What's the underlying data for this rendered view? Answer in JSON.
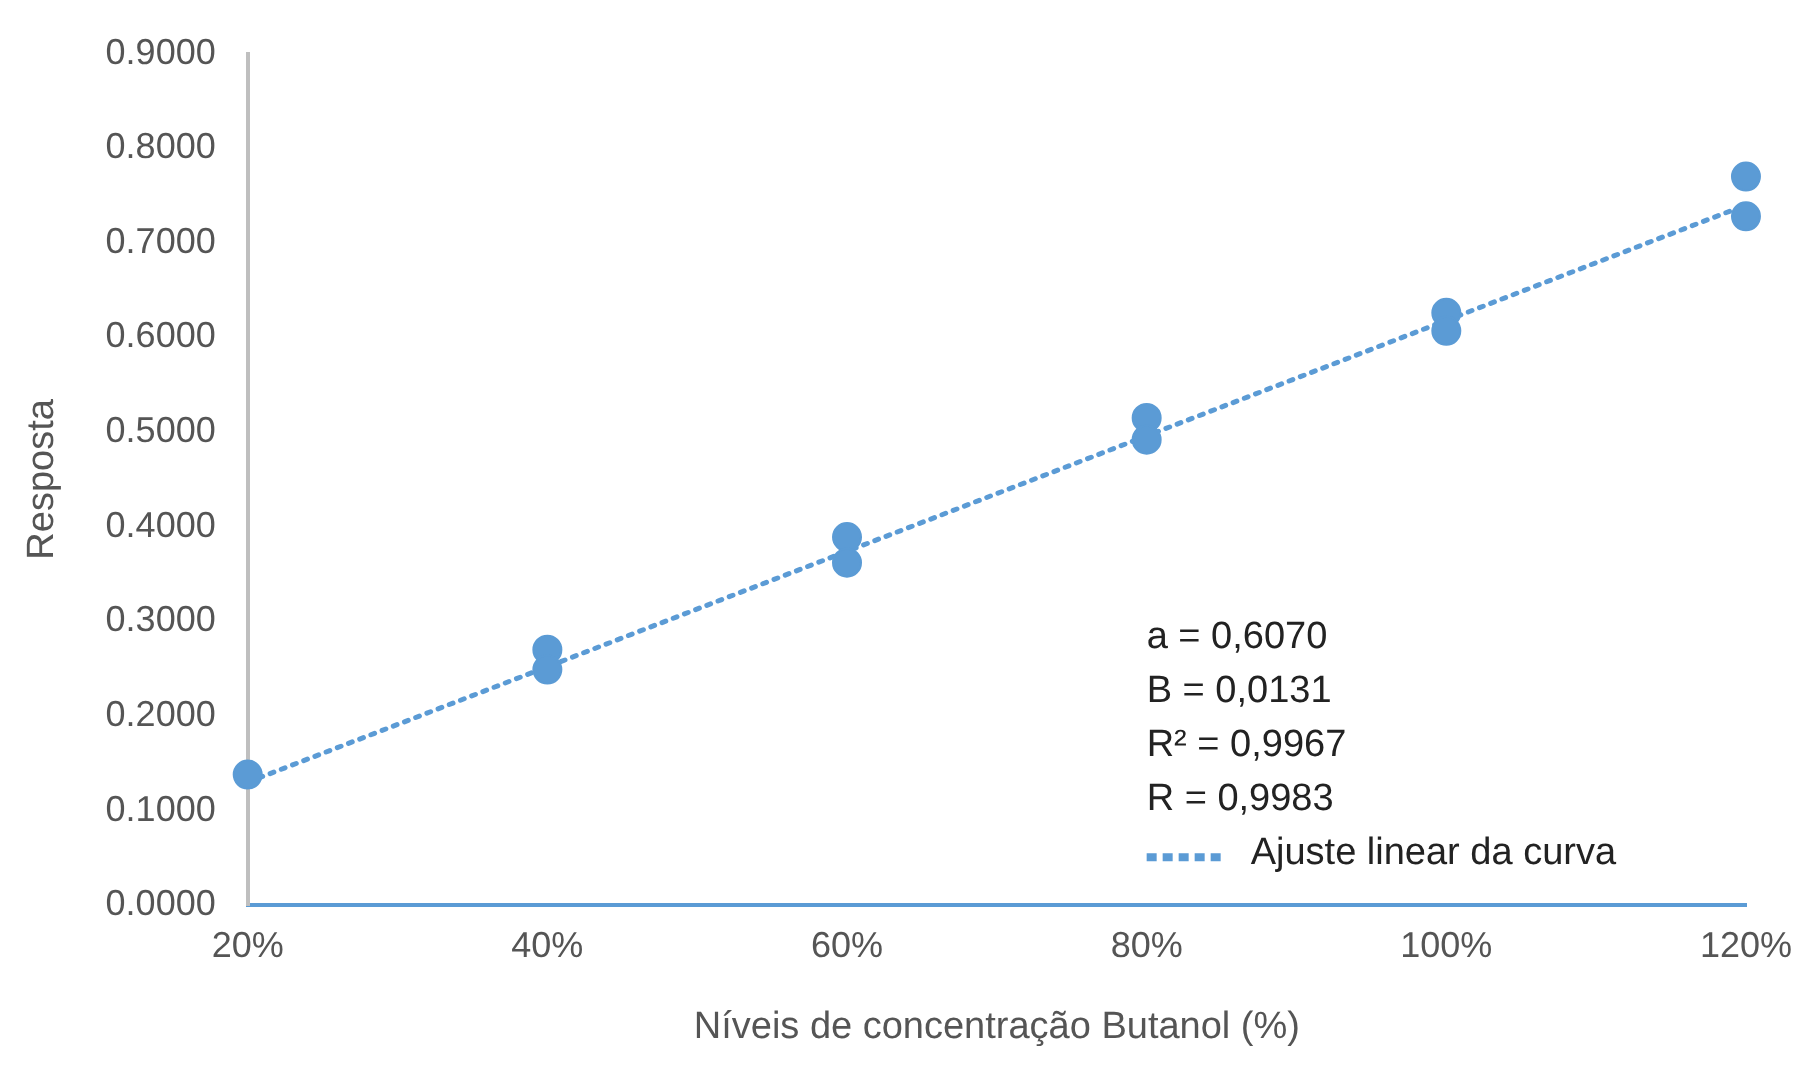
{
  "chart_data": {
    "type": "scatter",
    "xlabel": "Níveis de concentração Butanol (%)",
    "ylabel": "Resposta",
    "xlim": [
      0.2,
      1.2
    ],
    "xticks": [
      {
        "value": 0.2,
        "label": "20%"
      },
      {
        "value": 0.4,
        "label": "40%"
      },
      {
        "value": 0.6,
        "label": "60%"
      },
      {
        "value": 0.8,
        "label": "80%"
      },
      {
        "value": 1.0,
        "label": "100%"
      },
      {
        "value": 1.2,
        "label": "120%"
      }
    ],
    "ylim": [
      0,
      0.9
    ],
    "yticks": [
      {
        "value": 0,
        "label": "0.0000"
      },
      {
        "value": 0.1,
        "label": "0.1000"
      },
      {
        "value": 0.2,
        "label": "0.2000"
      },
      {
        "value": 0.3,
        "label": "0.3000"
      },
      {
        "value": 0.4,
        "label": "0.4000"
      },
      {
        "value": 0.5,
        "label": "0.5000"
      },
      {
        "value": 0.6,
        "label": "0.6000"
      },
      {
        "value": 0.7,
        "label": "0.7000"
      },
      {
        "value": 0.8,
        "label": "0.8000"
      },
      {
        "value": 0.9,
        "label": "0.9000"
      }
    ],
    "grid": false,
    "legend": "bottom right",
    "marker": "circle",
    "series": [
      {
        "color": "#5b9bd5",
        "x": [
          0.2,
          0.4,
          0.4,
          0.6,
          0.6,
          0.8,
          0.8,
          1.0,
          1.0,
          1.2,
          1.2
        ],
        "values": [
          0.138,
          0.27,
          0.249,
          0.389,
          0.362,
          0.515,
          0.492,
          0.626,
          0.607,
          0.77,
          0.728
        ]
      },
      {
        "type": "line",
        "name": "Ajuste linear da curva",
        "color": "#5b9bd5",
        "x": [
          0.2,
          1.2
        ],
        "values": [
          0.13,
          0.74
        ],
        "marker": "none",
        "line_style": "dotted"
      }
    ],
    "annotations": [
      "a = 0,6070",
      "B = 0,0131",
      "R² = 0,9967",
      "R = 0,9983"
    ]
  }
}
